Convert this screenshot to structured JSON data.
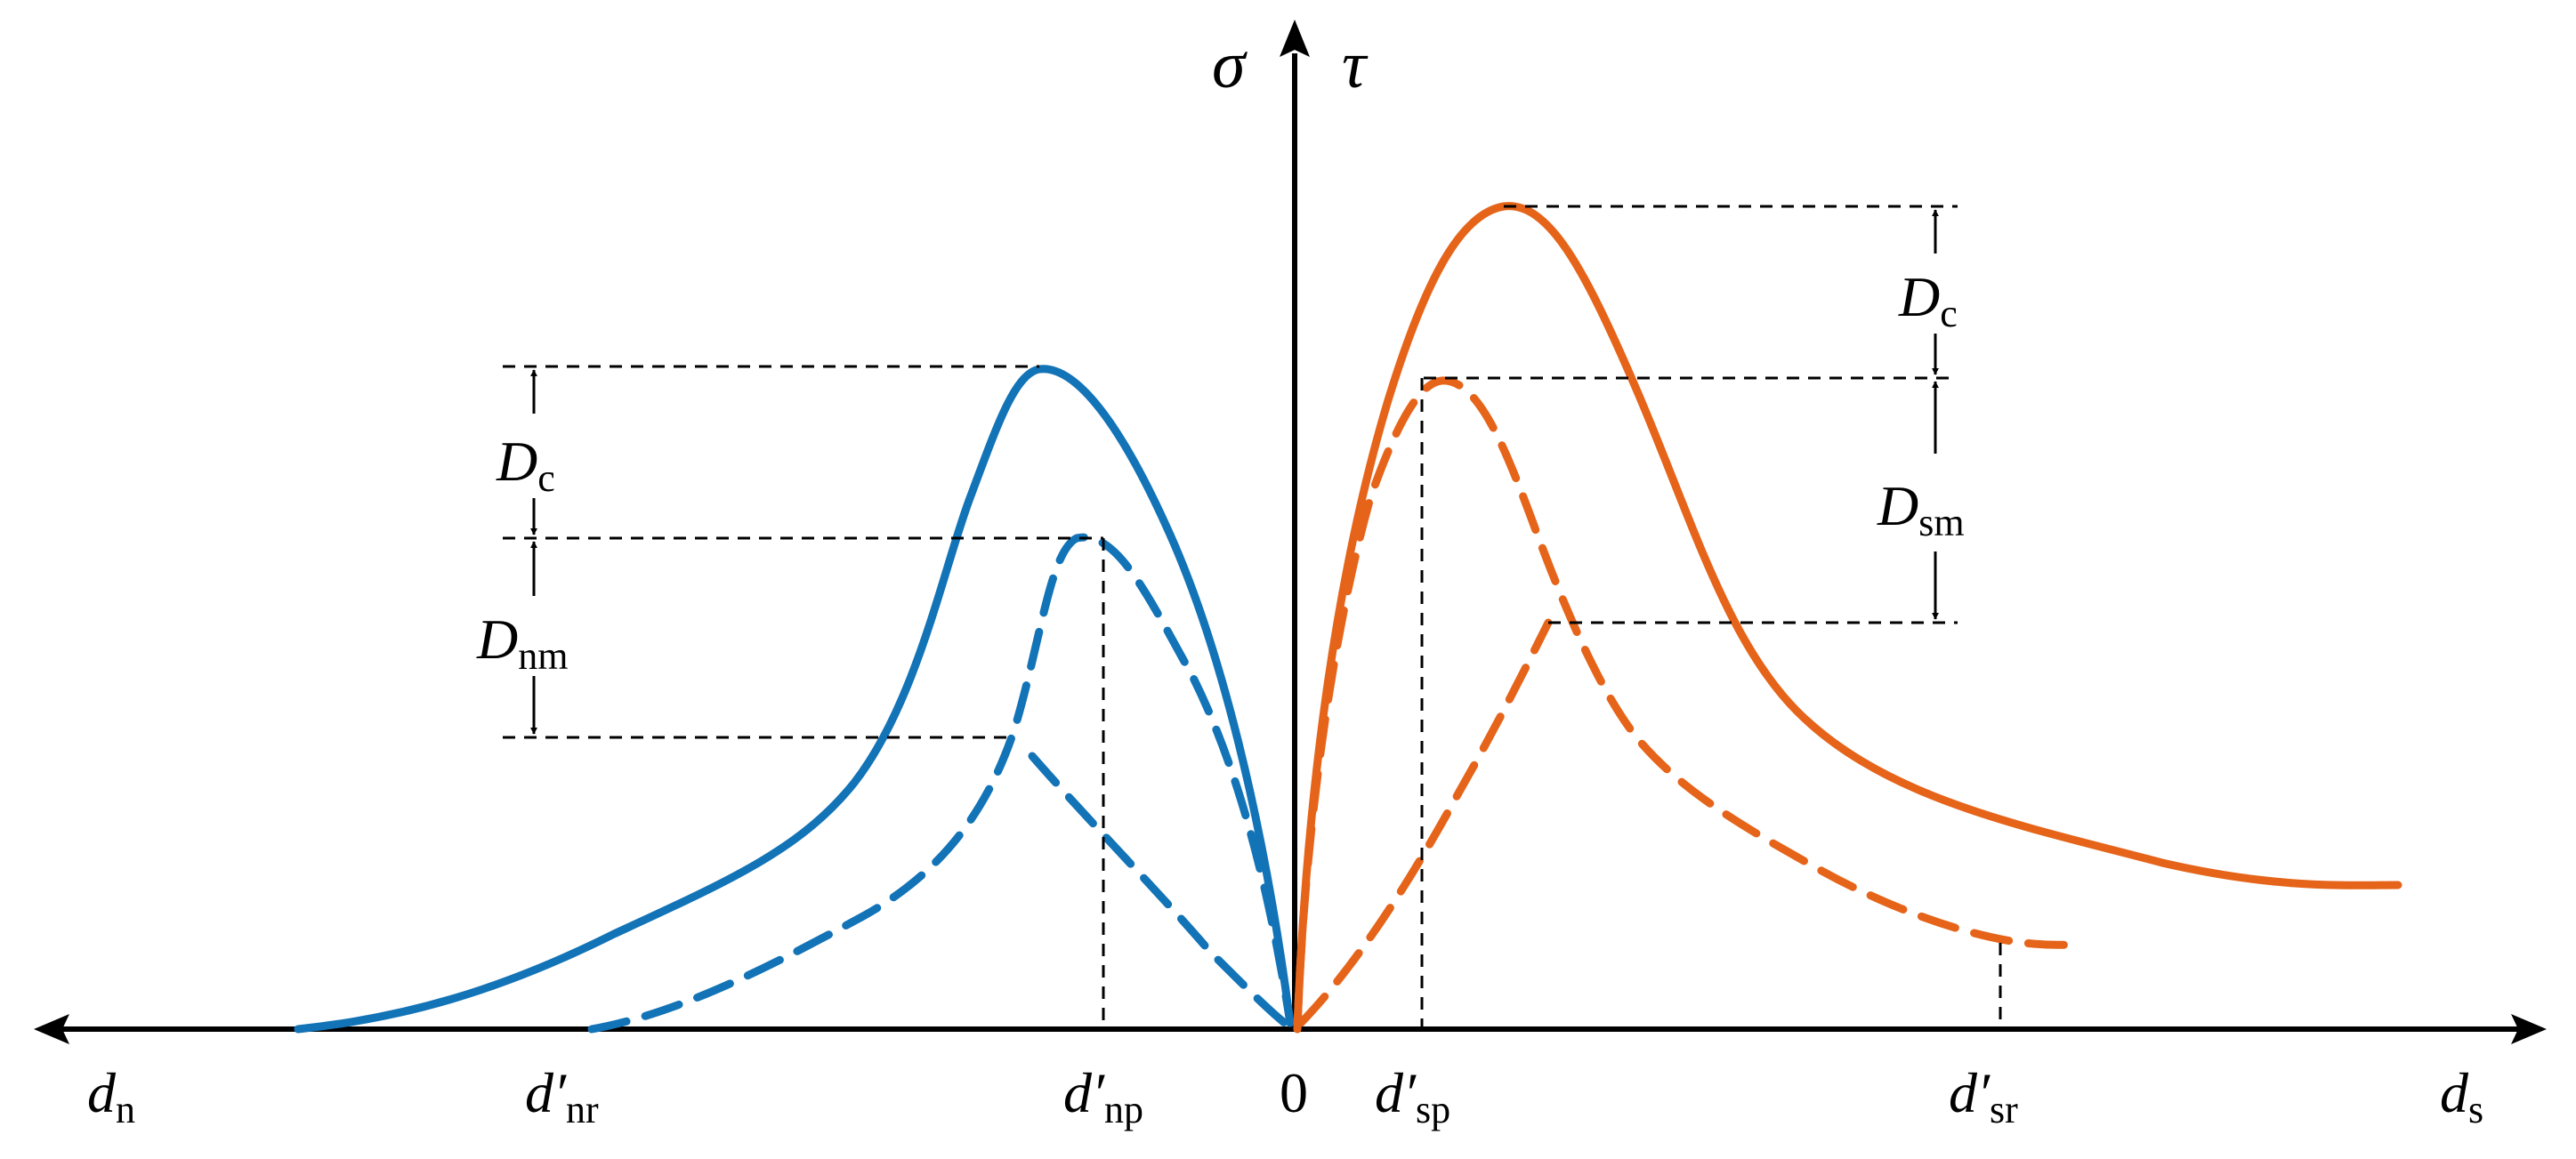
{
  "axes": {
    "y_label_left": "σ",
    "y_label_right": "τ",
    "x_label_left": {
      "main": "d",
      "sub": "n"
    },
    "x_label_right": {
      "main": "d",
      "sub": "s"
    },
    "origin": "0"
  },
  "tick_labels": {
    "d_nr": {
      "main": "d′",
      "sub": "nr"
    },
    "d_np": {
      "main": "d′",
      "sub": "np"
    },
    "d_sp": {
      "main": "d′",
      "sub": "sp"
    },
    "d_sr": {
      "main": "d′",
      "sub": "sr"
    }
  },
  "dimensions": {
    "left_c": {
      "main": "D",
      "sub": "c"
    },
    "left_nm": {
      "main": "D",
      "sub": "nm"
    },
    "right_c": {
      "main": "D",
      "sub": "c"
    },
    "right_sm": {
      "main": "D",
      "sub": "sm"
    }
  },
  "colors": {
    "normal_curve": "#1273b7",
    "shear_curve": "#e5641a",
    "axis": "#000000"
  }
}
